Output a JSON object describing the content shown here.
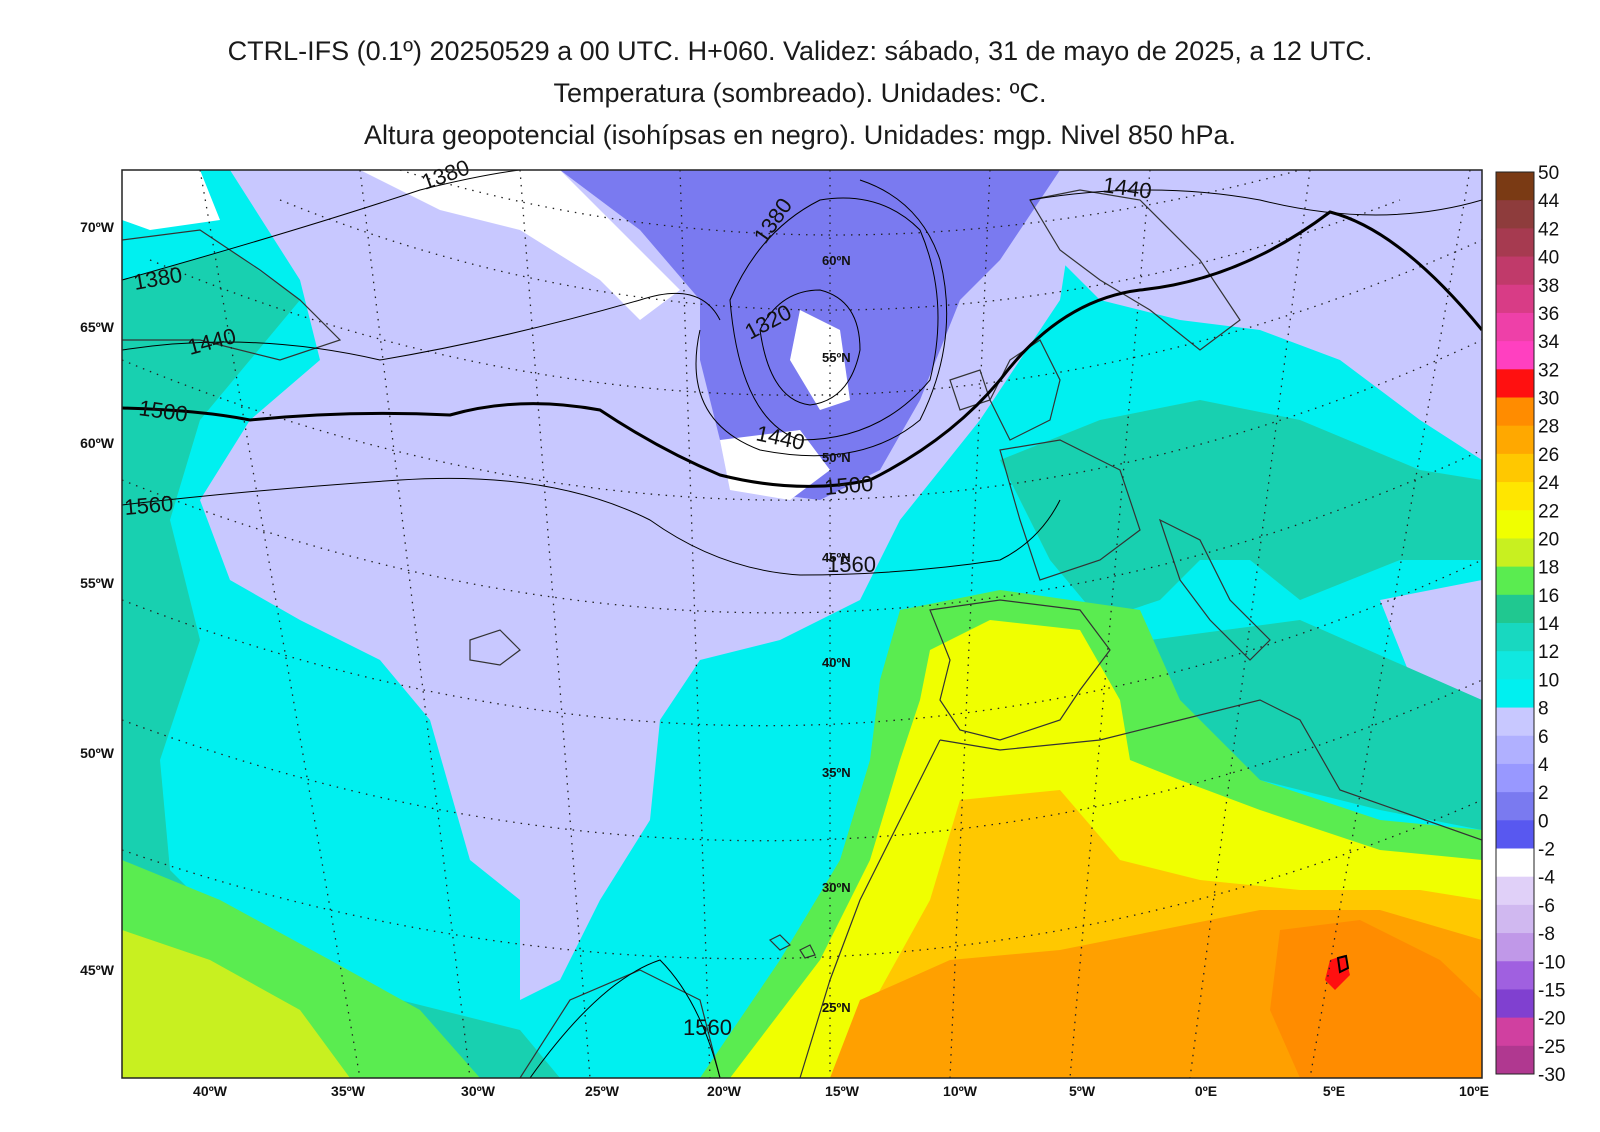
{
  "titles": {
    "line1": "CTRL-IFS (0.1º) 20250529 a 00 UTC. H+060. Validez: sábado, 31 de mayo de 2025, a 12 UTC.",
    "line2": "Temperatura (sombreado). Unidades: ºC.",
    "line3": "Altura geopotencial (isohípsas en negro). Unidades: mgp. Nivel 850 hPa."
  },
  "axes": {
    "bottom": [
      "40ºW",
      "35ºW",
      "30ºW",
      "25ºW",
      "20ºW",
      "15ºW",
      "10ºW",
      "5ºW",
      "0ºE",
      "5ºE",
      "10ºE"
    ],
    "left": [
      "70ºW",
      "65ºW",
      "60ºW",
      "55ºW",
      "50ºW",
      "45ºW"
    ],
    "parallels": [
      "60ºN",
      "55ºN",
      "50ºN",
      "45ºN",
      "40ºN",
      "35ºN",
      "30ºN",
      "25ºN"
    ]
  },
  "isohypses": [
    "1380",
    "1380",
    "1380",
    "1320",
    "1440",
    "1440",
    "1440",
    "1500",
    "1500",
    "1560",
    "1560",
    "1560"
  ],
  "colorbar": {
    "labels": [
      "50",
      "44",
      "42",
      "40",
      "38",
      "36",
      "34",
      "32",
      "30",
      "28",
      "26",
      "24",
      "22",
      "20",
      "18",
      "16",
      "14",
      "12",
      "10",
      "8",
      "6",
      "4",
      "2",
      "0",
      "-2",
      "-4",
      "-6",
      "-8",
      "-10",
      "-15",
      "-20",
      "-25",
      "-30"
    ],
    "colors": [
      "#7a3a14",
      "#8e3c3c",
      "#a63a50",
      "#c03a6a",
      "#d83c86",
      "#ee40a8",
      "#ff40c0",
      "#ff1010",
      "#ff8c00",
      "#ffa800",
      "#ffc800",
      "#ffe600",
      "#f0ff00",
      "#c8f020",
      "#5aec50",
      "#20c890",
      "#18d8c0",
      "#10e8e0",
      "#00f0f0",
      "#c8c8ff",
      "#b0b0ff",
      "#9898ff",
      "#7a7af0",
      "#5858f0",
      "#ffffff",
      "#e0d0f8",
      "#d0b8f0",
      "#c098e8",
      "#a060e0",
      "#8040d0",
      "#d040a0",
      "#b03890",
      "#904088"
    ]
  },
  "palette": {
    "white": "#ffffff",
    "lilac": "#c8c8ff",
    "violet": "#7a7af0",
    "cyan": "#00f0f0",
    "teal": "#18d0b0",
    "green": "#5aec50",
    "lime": "#c8f020",
    "yellow": "#f0ff00",
    "gold": "#ffc800",
    "orange": "#ffa000",
    "darkorange": "#ff8c00",
    "red": "#ff1010",
    "land_outline": "#333333",
    "grid_dots": "#222222"
  }
}
